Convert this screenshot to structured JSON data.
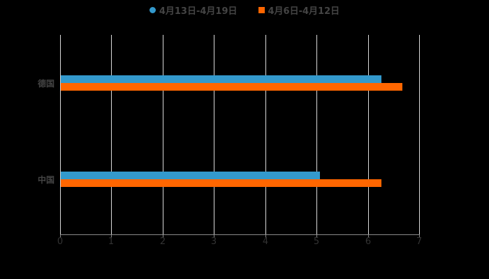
{
  "chart_data": {
    "type": "bar",
    "orientation": "horizontal",
    "title": "",
    "categories": [
      "德国",
      "中国"
    ],
    "series": [
      {
        "name": "4月13日-4月19日",
        "color": "#3399cc",
        "values": [
          6.25,
          5.05
        ]
      },
      {
        "name": "4月6日-4月12日",
        "color": "#ff6600",
        "values": [
          6.66,
          6.25
        ]
      }
    ],
    "xlabel": "",
    "ylabel": "",
    "xlim": [
      0,
      7
    ],
    "xticks": [
      "0",
      "1",
      "2",
      "3",
      "4",
      "5",
      "6",
      "7"
    ],
    "grid": true,
    "legend_position": "top"
  },
  "legend": {
    "items": [
      {
        "label": "4月13日-4月19日",
        "color": "#3399cc",
        "shape": "circle"
      },
      {
        "label": "4月6日-4月12日",
        "color": "#ff6600",
        "shape": "square"
      }
    ]
  },
  "axis": {
    "x_ticks": [
      "0",
      "1",
      "2",
      "3",
      "4",
      "5",
      "6",
      "7"
    ],
    "y_categories": [
      "德国",
      "中国"
    ]
  }
}
